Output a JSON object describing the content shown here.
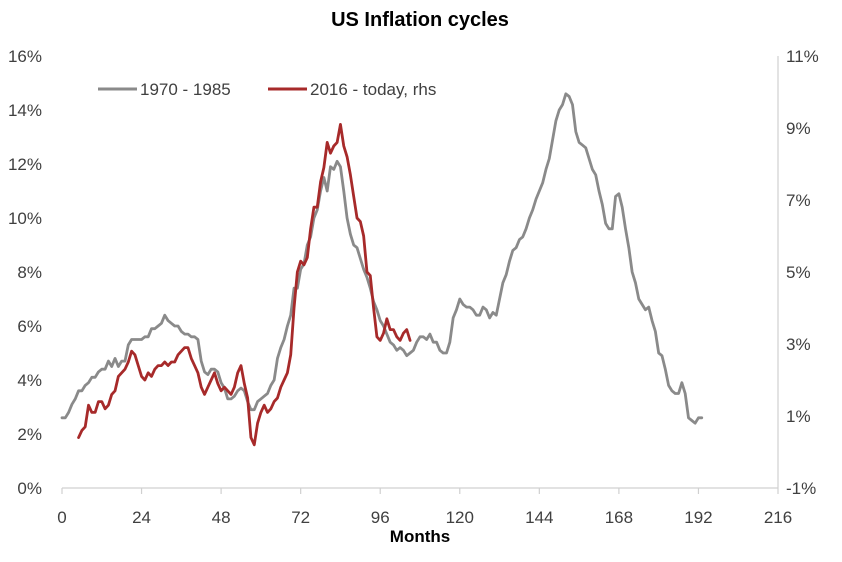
{
  "chart_data": {
    "type": "line",
    "title": "US Inflation cycles",
    "xlabel": "Months",
    "ylabel": "",
    "y2label": "",
    "xlim": [
      0,
      216
    ],
    "ylim": [
      0,
      16
    ],
    "y2lim": [
      -1,
      11
    ],
    "x_ticks": [
      "0",
      "24",
      "48",
      "72",
      "96",
      "120",
      "144",
      "168",
      "192",
      "216"
    ],
    "y_ticks": [
      "0%",
      "2%",
      "4%",
      "6%",
      "8%",
      "10%",
      "12%",
      "14%",
      "16%"
    ],
    "y2_ticks": [
      "-1%",
      "1%",
      "3%",
      "5%",
      "7%",
      "9%",
      "11%"
    ],
    "grid": false,
    "legend_position": "top-left",
    "series": [
      {
        "name": "1970 - 1985",
        "axis": "left",
        "color": "#8a8a8a",
        "points": [
          [
            0,
            2.6
          ],
          [
            1,
            2.6
          ],
          [
            2,
            2.8
          ],
          [
            3,
            3.1
          ],
          [
            4,
            3.3
          ],
          [
            5,
            3.6
          ],
          [
            6,
            3.6
          ],
          [
            7,
            3.8
          ],
          [
            8,
            3.9
          ],
          [
            9,
            4.1
          ],
          [
            10,
            4.1
          ],
          [
            11,
            4.3
          ],
          [
            12,
            4.4
          ],
          [
            13,
            4.4
          ],
          [
            14,
            4.7
          ],
          [
            15,
            4.5
          ],
          [
            16,
            4.8
          ],
          [
            17,
            4.5
          ],
          [
            18,
            4.7
          ],
          [
            19,
            4.7
          ],
          [
            20,
            5.3
          ],
          [
            21,
            5.5
          ],
          [
            22,
            5.5
          ],
          [
            23,
            5.5
          ],
          [
            24,
            5.5
          ],
          [
            25,
            5.6
          ],
          [
            26,
            5.6
          ],
          [
            27,
            5.9
          ],
          [
            28,
            5.9
          ],
          [
            29,
            6.0
          ],
          [
            30,
            6.1
          ],
          [
            31,
            6.4
          ],
          [
            32,
            6.2
          ],
          [
            33,
            6.1
          ],
          [
            34,
            6.0
          ],
          [
            35,
            6.0
          ],
          [
            36,
            5.8
          ],
          [
            37,
            5.7
          ],
          [
            38,
            5.7
          ],
          [
            39,
            5.6
          ],
          [
            40,
            5.6
          ],
          [
            41,
            5.5
          ],
          [
            42,
            4.7
          ],
          [
            43,
            4.3
          ],
          [
            44,
            4.2
          ],
          [
            45,
            4.4
          ],
          [
            46,
            4.4
          ],
          [
            47,
            4.3
          ],
          [
            48,
            3.9
          ],
          [
            49,
            3.7
          ],
          [
            50,
            3.3
          ],
          [
            51,
            3.3
          ],
          [
            52,
            3.4
          ],
          [
            53,
            3.6
          ],
          [
            54,
            3.7
          ],
          [
            55,
            3.6
          ],
          [
            56,
            3.2
          ],
          [
            57,
            2.9
          ],
          [
            58,
            2.9
          ],
          [
            59,
            3.2
          ],
          [
            60,
            3.3
          ],
          [
            61,
            3.4
          ],
          [
            62,
            3.5
          ],
          [
            63,
            3.8
          ],
          [
            64,
            4.0
          ],
          [
            65,
            4.8
          ],
          [
            66,
            5.2
          ],
          [
            67,
            5.5
          ],
          [
            68,
            6.0
          ],
          [
            69,
            6.4
          ],
          [
            70,
            7.4
          ],
          [
            71,
            7.4
          ],
          [
            72,
            8.1
          ],
          [
            73,
            8.3
          ],
          [
            74,
            9.0
          ],
          [
            75,
            9.3
          ],
          [
            76,
            10.0
          ],
          [
            77,
            10.3
          ],
          [
            78,
            11.0
          ],
          [
            79,
            11.5
          ],
          [
            80,
            11.0
          ],
          [
            81,
            11.9
          ],
          [
            82,
            11.8
          ],
          [
            83,
            12.1
          ],
          [
            84,
            11.9
          ],
          [
            85,
            11.0
          ],
          [
            86,
            10.0
          ],
          [
            87,
            9.4
          ],
          [
            88,
            9.0
          ],
          [
            89,
            8.9
          ],
          [
            90,
            8.5
          ],
          [
            91,
            8.1
          ],
          [
            92,
            7.8
          ],
          [
            93,
            7.4
          ],
          [
            94,
            6.9
          ],
          [
            95,
            6.6
          ],
          [
            96,
            6.2
          ],
          [
            97,
            6.0
          ],
          [
            98,
            5.7
          ],
          [
            99,
            5.4
          ],
          [
            100,
            5.3
          ],
          [
            101,
            5.1
          ],
          [
            102,
            5.2
          ],
          [
            103,
            5.1
          ],
          [
            104,
            4.9
          ],
          [
            105,
            5.0
          ],
          [
            106,
            5.1
          ],
          [
            107,
            5.4
          ],
          [
            108,
            5.6
          ],
          [
            109,
            5.6
          ],
          [
            110,
            5.5
          ],
          [
            111,
            5.7
          ],
          [
            112,
            5.4
          ],
          [
            113,
            5.4
          ],
          [
            114,
            5.1
          ],
          [
            115,
            5.0
          ],
          [
            116,
            5.0
          ],
          [
            117,
            5.4
          ],
          [
            118,
            6.3
          ],
          [
            119,
            6.6
          ],
          [
            120,
            7.0
          ],
          [
            121,
            6.8
          ],
          [
            122,
            6.7
          ],
          [
            123,
            6.7
          ],
          [
            124,
            6.6
          ],
          [
            125,
            6.4
          ],
          [
            126,
            6.4
          ],
          [
            127,
            6.7
          ],
          [
            128,
            6.6
          ],
          [
            129,
            6.3
          ],
          [
            130,
            6.5
          ],
          [
            131,
            6.4
          ],
          [
            132,
            7.0
          ],
          [
            133,
            7.6
          ],
          [
            134,
            7.9
          ],
          [
            135,
            8.4
          ],
          [
            136,
            8.8
          ],
          [
            137,
            8.9
          ],
          [
            138,
            9.2
          ],
          [
            139,
            9.3
          ],
          [
            140,
            9.6
          ],
          [
            141,
            10.0
          ],
          [
            142,
            10.3
          ],
          [
            143,
            10.7
          ],
          [
            144,
            11.0
          ],
          [
            145,
            11.3
          ],
          [
            146,
            11.8
          ],
          [
            147,
            12.2
          ],
          [
            148,
            12.9
          ],
          [
            149,
            13.6
          ],
          [
            150,
            14.0
          ],
          [
            151,
            14.2
          ],
          [
            152,
            14.6
          ],
          [
            153,
            14.5
          ],
          [
            154,
            14.2
          ],
          [
            155,
            13.2
          ],
          [
            156,
            12.8
          ],
          [
            157,
            12.7
          ],
          [
            158,
            12.6
          ],
          [
            159,
            12.2
          ],
          [
            160,
            11.8
          ],
          [
            161,
            11.6
          ],
          [
            162,
            11.0
          ],
          [
            163,
            10.5
          ],
          [
            164,
            9.8
          ],
          [
            165,
            9.6
          ],
          [
            166,
            9.6
          ],
          [
            167,
            10.8
          ],
          [
            168,
            10.9
          ],
          [
            169,
            10.4
          ],
          [
            170,
            9.6
          ],
          [
            171,
            8.9
          ],
          [
            172,
            8.0
          ],
          [
            173,
            7.6
          ],
          [
            174,
            7.0
          ],
          [
            175,
            6.8
          ],
          [
            176,
            6.6
          ],
          [
            177,
            6.7
          ],
          [
            178,
            6.2
          ],
          [
            179,
            5.8
          ],
          [
            180,
            5.0
          ],
          [
            181,
            4.9
          ],
          [
            182,
            4.4
          ],
          [
            183,
            3.8
          ],
          [
            184,
            3.6
          ],
          [
            185,
            3.5
          ],
          [
            186,
            3.5
          ],
          [
            187,
            3.9
          ],
          [
            188,
            3.5
          ],
          [
            189,
            2.6
          ],
          [
            190,
            2.5
          ],
          [
            191,
            2.4
          ],
          [
            192,
            2.6
          ],
          [
            193,
            2.6
          ]
        ]
      },
      {
        "name": "2016 - today, rhs",
        "axis": "right",
        "color": "#a72a2a",
        "points": [
          [
            5,
            0.4
          ],
          [
            6,
            0.6
          ],
          [
            7,
            0.7
          ],
          [
            8,
            1.3
          ],
          [
            9,
            1.1
          ],
          [
            10,
            1.1
          ],
          [
            11,
            1.4
          ],
          [
            12,
            1.4
          ],
          [
            13,
            1.2
          ],
          [
            14,
            1.3
          ],
          [
            15,
            1.6
          ],
          [
            16,
            1.7
          ],
          [
            17,
            2.1
          ],
          [
            18,
            2.2
          ],
          [
            19,
            2.3
          ],
          [
            20,
            2.5
          ],
          [
            21,
            2.8
          ],
          [
            22,
            2.7
          ],
          [
            23,
            2.4
          ],
          [
            24,
            2.1
          ],
          [
            25,
            2.0
          ],
          [
            26,
            2.2
          ],
          [
            27,
            2.1
          ],
          [
            28,
            2.3
          ],
          [
            29,
            2.4
          ],
          [
            30,
            2.4
          ],
          [
            31,
            2.5
          ],
          [
            32,
            2.4
          ],
          [
            33,
            2.5
          ],
          [
            34,
            2.5
          ],
          [
            35,
            2.7
          ],
          [
            36,
            2.8
          ],
          [
            37,
            2.9
          ],
          [
            38,
            2.9
          ],
          [
            39,
            2.6
          ],
          [
            40,
            2.4
          ],
          [
            41,
            2.2
          ],
          [
            42,
            1.8
          ],
          [
            43,
            1.6
          ],
          [
            44,
            1.8
          ],
          [
            45,
            2.0
          ],
          [
            46,
            2.2
          ],
          [
            47,
            1.9
          ],
          [
            48,
            1.7
          ],
          [
            49,
            1.8
          ],
          [
            50,
            1.7
          ],
          [
            51,
            1.6
          ],
          [
            52,
            1.8
          ],
          [
            53,
            2.2
          ],
          [
            54,
            2.4
          ],
          [
            55,
            1.9
          ],
          [
            56,
            1.5
          ],
          [
            57,
            0.4
          ],
          [
            58,
            0.2
          ],
          [
            59,
            0.8
          ],
          [
            60,
            1.1
          ],
          [
            61,
            1.3
          ],
          [
            62,
            1.1
          ],
          [
            63,
            1.2
          ],
          [
            64,
            1.4
          ],
          [
            65,
            1.5
          ],
          [
            66,
            1.8
          ],
          [
            67,
            2.0
          ],
          [
            68,
            2.2
          ],
          [
            69,
            2.7
          ],
          [
            70,
            4.0
          ],
          [
            71,
            5.0
          ],
          [
            72,
            5.3
          ],
          [
            73,
            5.2
          ],
          [
            74,
            5.4
          ],
          [
            75,
            6.2
          ],
          [
            76,
            6.8
          ],
          [
            77,
            6.8
          ],
          [
            78,
            7.5
          ],
          [
            79,
            7.9
          ],
          [
            80,
            8.6
          ],
          [
            81,
            8.3
          ],
          [
            82,
            8.5
          ],
          [
            83,
            8.6
          ],
          [
            84,
            9.1
          ],
          [
            85,
            8.5
          ],
          [
            86,
            8.2
          ],
          [
            87,
            7.7
          ],
          [
            88,
            7.1
          ],
          [
            89,
            6.5
          ],
          [
            90,
            6.4
          ],
          [
            91,
            6.0
          ],
          [
            92,
            5.0
          ],
          [
            93,
            4.9
          ],
          [
            94,
            4.0
          ],
          [
            95,
            3.2
          ],
          [
            96,
            3.1
          ],
          [
            97,
            3.3
          ],
          [
            98,
            3.7
          ],
          [
            99,
            3.4
          ],
          [
            100,
            3.4
          ],
          [
            101,
            3.2
          ],
          [
            102,
            3.1
          ],
          [
            103,
            3.3
          ],
          [
            104,
            3.4
          ],
          [
            105,
            3.1
          ]
        ]
      }
    ]
  }
}
